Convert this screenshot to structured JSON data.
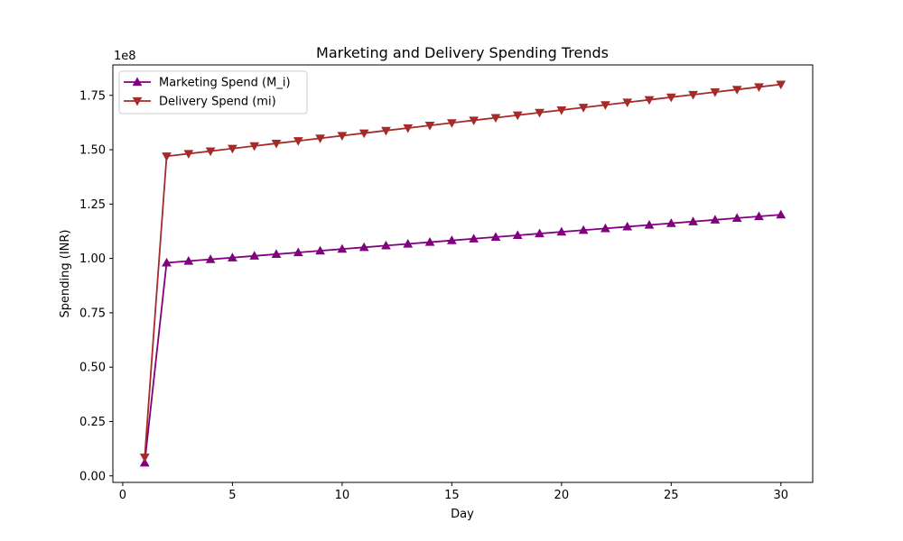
{
  "chart_data": {
    "type": "line",
    "title": "Marketing and Delivery Spending Trends",
    "xlabel": "Day",
    "ylabel": "Spending (INR)",
    "y_offset_text": "1e8",
    "xlim": [
      -0.45,
      31.45
    ],
    "ylim": [
      -0.03,
      1.89
    ],
    "x_ticks": [
      0,
      5,
      10,
      15,
      20,
      25,
      30
    ],
    "y_ticks": [
      0.0,
      0.25,
      0.5,
      0.75,
      1.0,
      1.25,
      1.5,
      1.75
    ],
    "y_tick_labels": [
      "0.00",
      "0.25",
      "0.50",
      "0.75",
      "1.00",
      "1.25",
      "1.50",
      "1.75"
    ],
    "legend_position": "top-left",
    "grid": false,
    "x": [
      1,
      2,
      3,
      4,
      5,
      6,
      7,
      8,
      9,
      10,
      11,
      12,
      13,
      14,
      15,
      16,
      17,
      18,
      19,
      20,
      21,
      22,
      23,
      24,
      25,
      26,
      27,
      28,
      29,
      30
    ],
    "series": [
      {
        "name": "Marketing Spend (M_i)",
        "color": "#800080",
        "marker": "triangle-up",
        "values": [
          0.06,
          0.98,
          0.9879,
          0.9958,
          1.0037,
          1.0116,
          1.0195,
          1.0274,
          1.0353,
          1.0432,
          1.0511,
          1.059,
          1.0669,
          1.0748,
          1.0827,
          1.0906,
          1.0985,
          1.1064,
          1.1143,
          1.1222,
          1.1301,
          1.138,
          1.1459,
          1.1538,
          1.1617,
          1.1696,
          1.1775,
          1.1854,
          1.1933,
          1.2012
        ]
      },
      {
        "name": "Delivery Spend (mi)",
        "color": "#a52a2a",
        "marker": "triangle-down",
        "values": [
          0.085,
          1.47,
          1.4818,
          1.4936,
          1.5054,
          1.5172,
          1.529,
          1.5408,
          1.5526,
          1.5644,
          1.5762,
          1.588,
          1.5998,
          1.6116,
          1.6234,
          1.6352,
          1.647,
          1.6588,
          1.6706,
          1.6824,
          1.6942,
          1.706,
          1.7178,
          1.7296,
          1.7414,
          1.7532,
          1.765,
          1.7768,
          1.7886,
          1.8004
        ]
      }
    ]
  }
}
